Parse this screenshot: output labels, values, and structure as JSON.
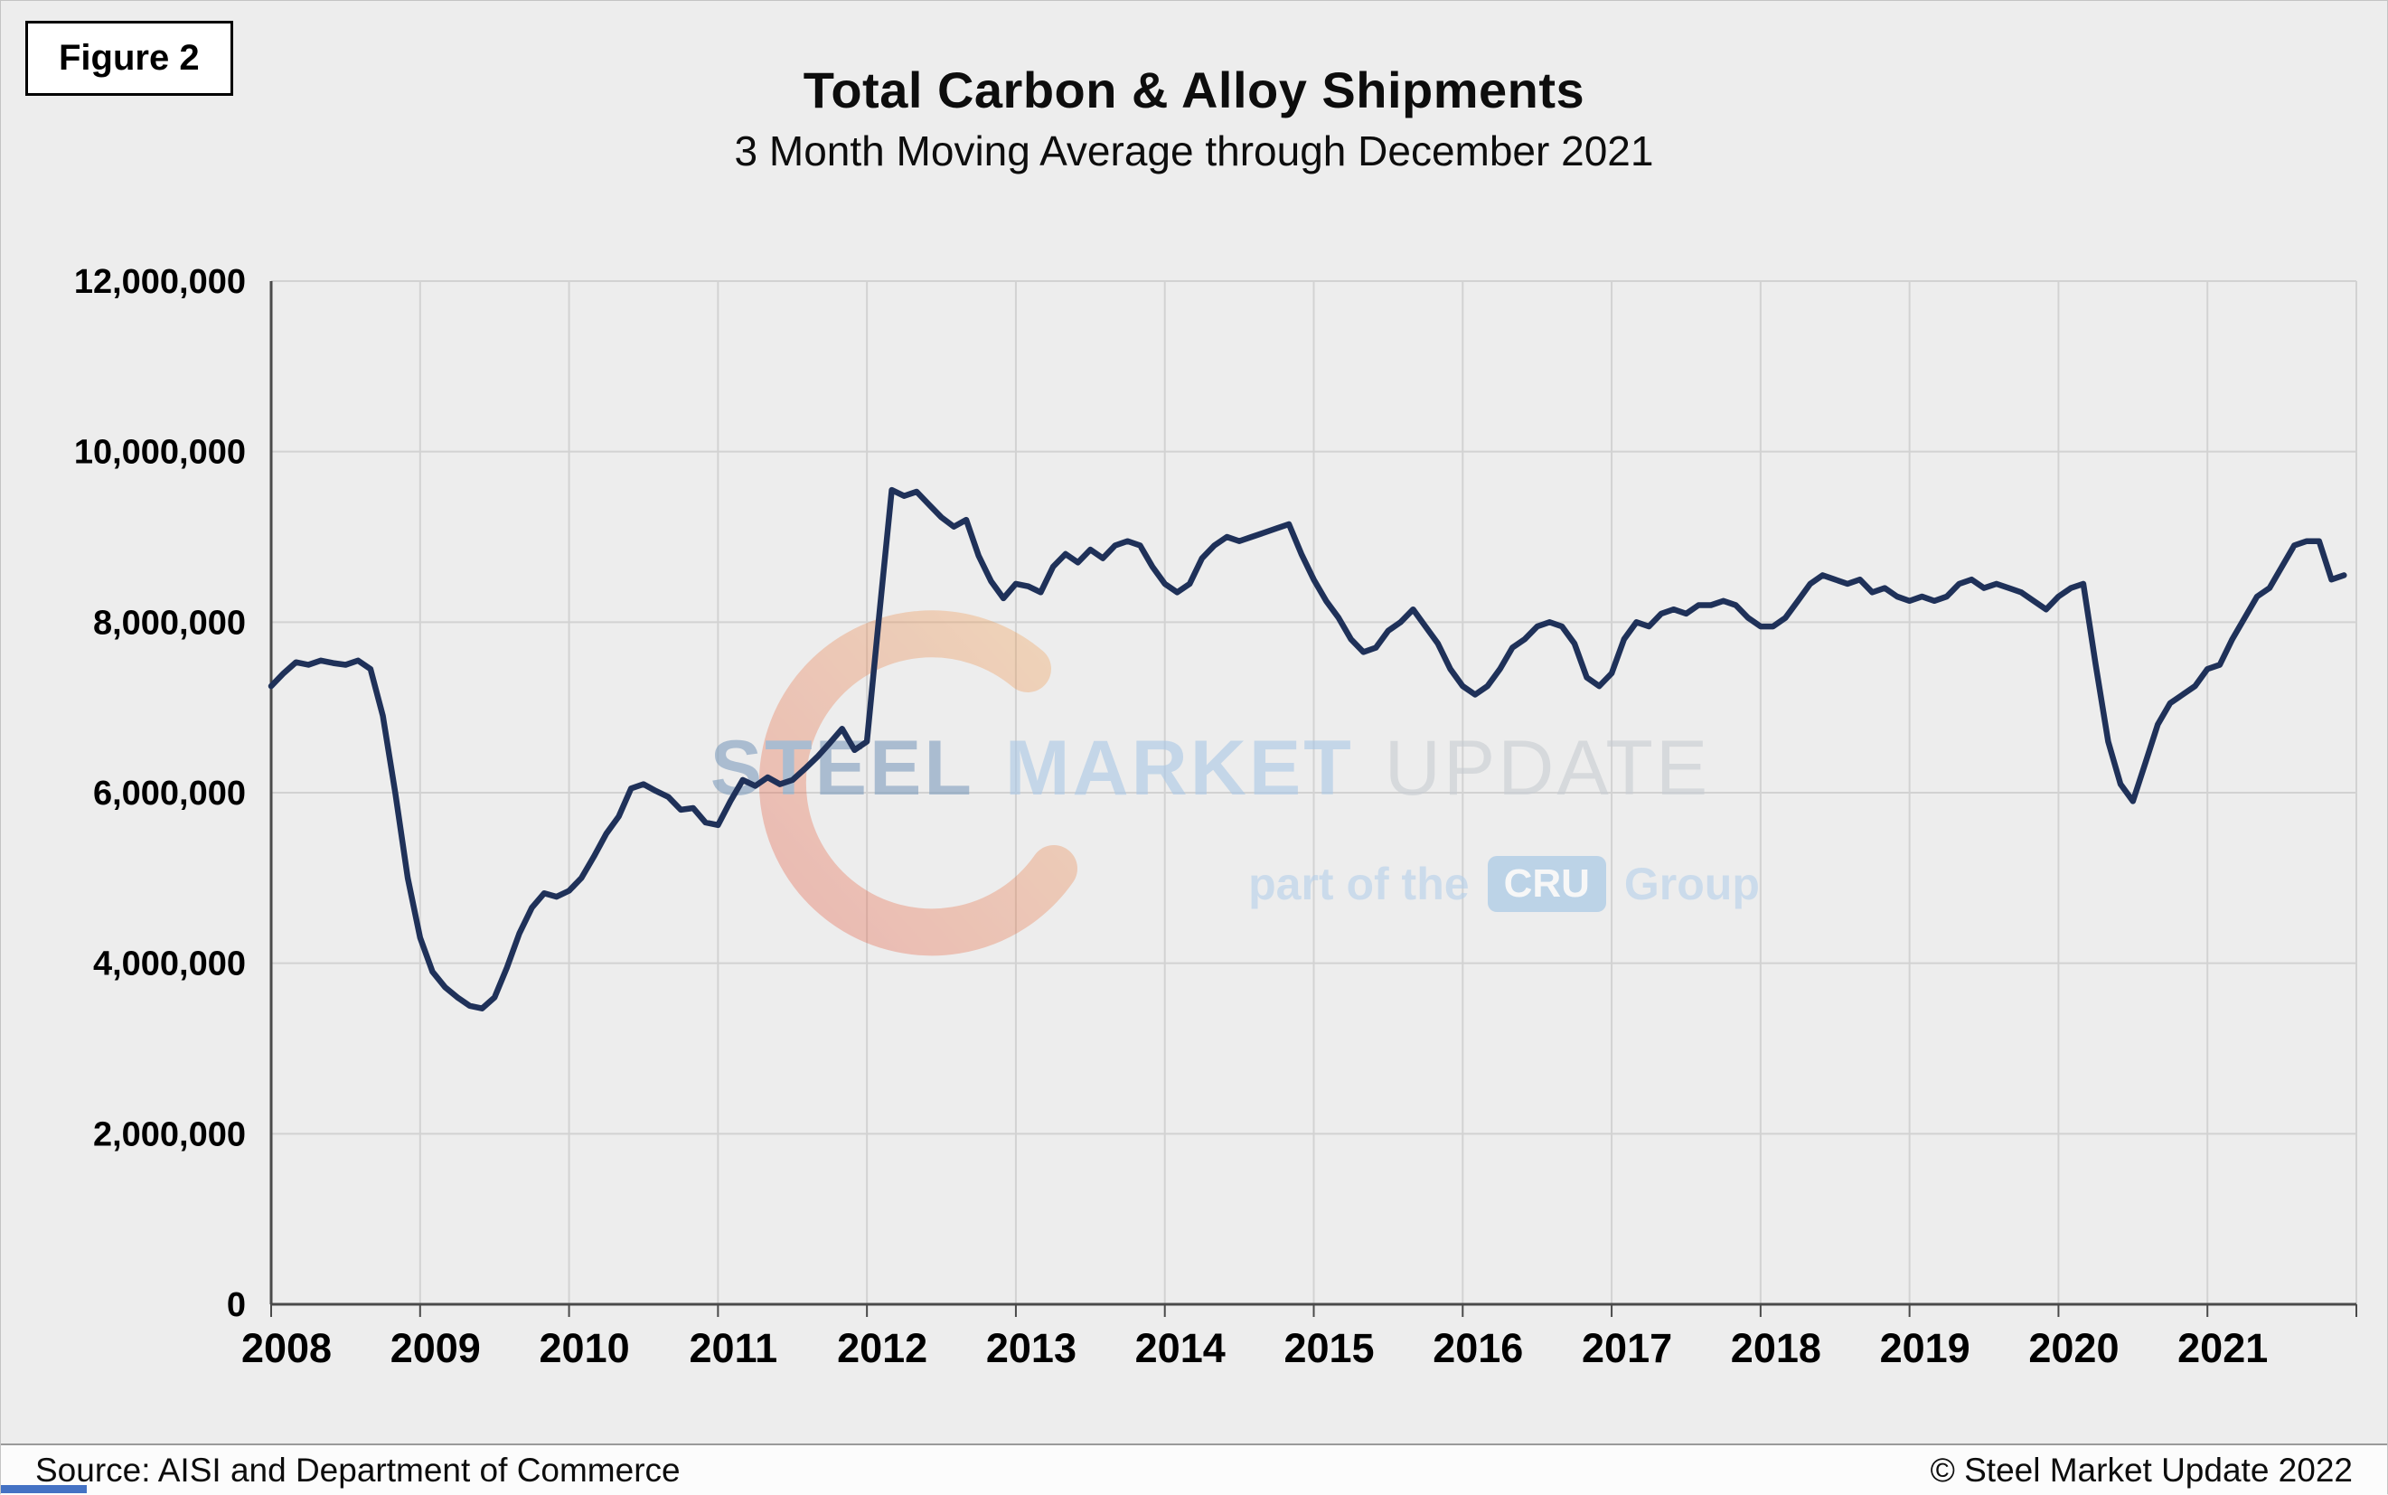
{
  "figure_label": "Figure 2",
  "header": {
    "title": "Total Carbon & Alloy Shipments",
    "subtitle": "3 Month Moving Average through December 2021"
  },
  "footer": {
    "source": "Source: AISI and Department of Commerce",
    "copyright": "© Steel Market Update 2022"
  },
  "watermark": {
    "word1": "STEEL",
    "word2": "MARKET",
    "word3": "UPDATE",
    "tagline_prefix": "part of the",
    "tagline_box": "CRU",
    "tagline_suffix": "Group"
  },
  "colors": {
    "line": "#1f3159",
    "background": "#ededed",
    "gridline": "#d2d2d2",
    "axis": "#4a4a4a",
    "watermark_red": "#e2503c",
    "watermark_orange": "#f0a050",
    "watermark_blue": "#9cc2e4"
  },
  "chart_data": {
    "type": "line",
    "title": "Total Carbon & Alloy Shipments",
    "subtitle": "3 Month Moving Average through December 2021",
    "xlabel": "",
    "ylabel": "",
    "ylim": [
      0,
      12000000
    ],
    "ytick_interval": 2000000,
    "ytick_labels": [
      "0",
      "2,000,000",
      "4,000,000",
      "6,000,000",
      "8,000,000",
      "10,000,000",
      "12,000,000"
    ],
    "x_tick_labels": [
      "2008",
      "2009",
      "2010",
      "2011",
      "2012",
      "2013",
      "2014",
      "2015",
      "2016",
      "2017",
      "2018",
      "2019",
      "2020",
      "2021"
    ],
    "x_start_year": 2008,
    "points_per_year": 12,
    "grid": true,
    "legend": "none",
    "series": [
      {
        "name": "3 Month Moving Average",
        "frequency": "monthly",
        "start": "2008-01",
        "end": "2021-12",
        "values": [
          7250000,
          7400000,
          7530000,
          7500000,
          7550000,
          7520000,
          7500000,
          7550000,
          7450000,
          6900000,
          6000000,
          5000000,
          4300000,
          3900000,
          3720000,
          3600000,
          3500000,
          3470000,
          3600000,
          3950000,
          4350000,
          4650000,
          4820000,
          4780000,
          4850000,
          5000000,
          5250000,
          5520000,
          5720000,
          6050000,
          6100000,
          6020000,
          5950000,
          5800000,
          5820000,
          5650000,
          5620000,
          5900000,
          6150000,
          6080000,
          6180000,
          6100000,
          6150000,
          6280000,
          6420000,
          6580000,
          6750000,
          6500000,
          6600000,
          8100000,
          9550000,
          9480000,
          9530000,
          9380000,
          9230000,
          9120000,
          9200000,
          8780000,
          8480000,
          8280000,
          8450000,
          8420000,
          8350000,
          8650000,
          8800000,
          8700000,
          8850000,
          8750000,
          8900000,
          8950000,
          8900000,
          8650000,
          8450000,
          8350000,
          8450000,
          8750000,
          8900000,
          9000000,
          8950000,
          9000000,
          9050000,
          9100000,
          9150000,
          8800000,
          8500000,
          8250000,
          8050000,
          7800000,
          7650000,
          7700000,
          7900000,
          8000000,
          8150000,
          7950000,
          7750000,
          7450000,
          7250000,
          7150000,
          7250000,
          7450000,
          7700000,
          7800000,
          7950000,
          8000000,
          7950000,
          7750000,
          7350000,
          7250000,
          7400000,
          7800000,
          8000000,
          7950000,
          8100000,
          8150000,
          8100000,
          8200000,
          8200000,
          8250000,
          8200000,
          8050000,
          7950000,
          7950000,
          8050000,
          8250000,
          8450000,
          8550000,
          8500000,
          8450000,
          8500000,
          8350000,
          8400000,
          8300000,
          8250000,
          8300000,
          8250000,
          8300000,
          8450000,
          8500000,
          8400000,
          8450000,
          8400000,
          8350000,
          8250000,
          8150000,
          8300000,
          8400000,
          8450000,
          7500000,
          6600000,
          6100000,
          5900000,
          6350000,
          6800000,
          7050000,
          7150000,
          7250000,
          7450000,
          7500000,
          7800000,
          8050000,
          8300000,
          8400000,
          8650000,
          8900000,
          8950000,
          8950000,
          8500000,
          8550000
        ]
      }
    ]
  }
}
